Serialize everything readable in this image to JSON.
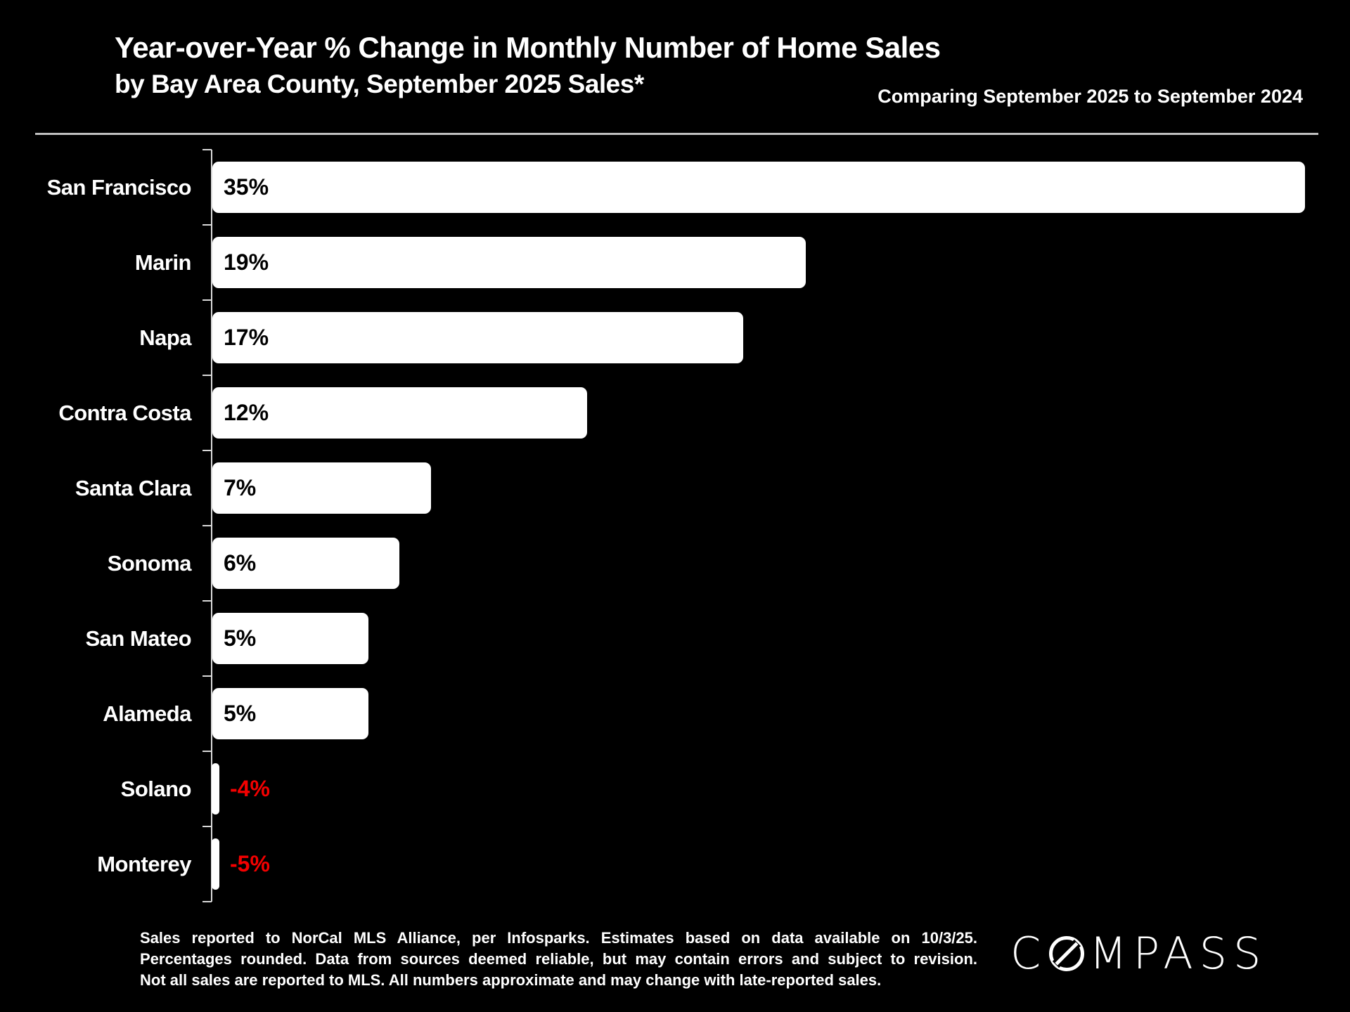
{
  "chart_data": {
    "type": "bar",
    "orientation": "horizontal",
    "title": "Year-over-Year % Change in Monthly Number of Home Sales",
    "subtitle": "by Bay Area County, September 2025 Sales*",
    "annotation": "Comparing September 2025 to September 2024",
    "categories": [
      "San Francisco",
      "Marin",
      "Napa",
      "Contra Costa",
      "Santa Clara",
      "Sonoma",
      "San Mateo",
      "Alameda",
      "Solano",
      "Monterey"
    ],
    "values": [
      35,
      19,
      17,
      12,
      7,
      6,
      5,
      5,
      -4,
      -5
    ],
    "value_labels": [
      "35%",
      "19%",
      "17%",
      "12%",
      "7%",
      "6%",
      "5%",
      "5%",
      "-4%",
      "-5%"
    ],
    "xlim": [
      0,
      35
    ],
    "grid": false,
    "legend_position": null,
    "bar_color": "#ffffff",
    "positive_label_color": "#000000",
    "negative_label_color": "#f40000",
    "axis_color": "#d9d9d9",
    "background_color": "#000000"
  },
  "footer": {
    "disclaimer_lines": [
      "Sales reported to NorCal MLS Alliance, per Infosparks. Estimates based on data available on 10/3/25.",
      "Percentages rounded. Data from sources deemed reliable, but may contain errors and subject to revision.",
      "Not all sales are reported to MLS. All numbers approximate and may change with late-reported sales."
    ],
    "logo_prefix": "C",
    "logo_suffix": "MPASS"
  }
}
